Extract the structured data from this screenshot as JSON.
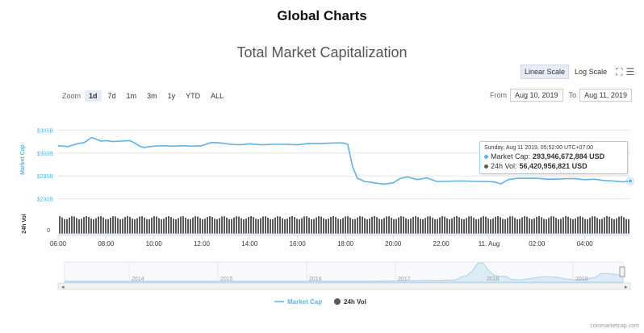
{
  "header": {
    "page_title": "Global Charts",
    "chart_title": "Total Market Capitalization"
  },
  "controls": {
    "scale_linear": "Linear Scale",
    "scale_log": "Log Scale",
    "zoom_label": "Zoom",
    "zoom_options": [
      "1d",
      "7d",
      "1m",
      "3m",
      "1y",
      "YTD",
      "ALL"
    ],
    "zoom_selected": "1d",
    "from_label": "From",
    "from_value": "Aug 10, 2019",
    "to_label": "To",
    "to_value": "Aug 11, 2019"
  },
  "tooltip": {
    "timestamp": "Sunday, Aug 11 2019, 05:52:00 UTC+07:00",
    "market_cap_label": "Market Cap:",
    "market_cap_value": "293,946,672,884 USD",
    "volume_label": "24h Vol:",
    "volume_value": "56,420,956,821 USD"
  },
  "legend": {
    "market_cap": "Market Cap",
    "volume": "24h Vol"
  },
  "watermark": "coinmarketcap.com",
  "colors": {
    "line": "#5fb3e4",
    "volume": "#5a5a5a",
    "navigator": "#a9d4ef",
    "grid": "#e6e6e6"
  },
  "chart_data": {
    "type": "line",
    "ylabel": "Market Cap",
    "ylabel_volume": "24h Vol",
    "y_ticks": [
      "$305B",
      "$300B",
      "$295B",
      "$290B"
    ],
    "y_tick_values": [
      305,
      300,
      295,
      290
    ],
    "ylim": [
      288,
      307
    ],
    "y_units": "billion USD",
    "volume_tick": "0",
    "x_ticks": [
      "06:00",
      "08:00",
      "10:00",
      "12:00",
      "14:00",
      "16:00",
      "18:00",
      "20:00",
      "22:00",
      "11. Aug",
      "02:00",
      "04:00"
    ],
    "x_tick_hours": [
      6,
      8,
      10,
      12,
      14,
      16,
      18,
      20,
      22,
      24,
      26,
      28
    ],
    "xlim_hours": [
      6,
      29.9
    ],
    "series": [
      {
        "name": "Market Cap",
        "x": [
          6.0,
          6.4,
          6.8,
          7.1,
          7.4,
          7.6,
          7.8,
          8.0,
          8.3,
          8.6,
          9.0,
          9.2,
          9.4,
          9.6,
          9.8,
          10.0,
          10.4,
          10.8,
          11.2,
          11.6,
          12.0,
          12.4,
          12.8,
          13.2,
          13.6,
          14.0,
          14.5,
          15.0,
          15.5,
          16.0,
          16.5,
          17.0,
          17.5,
          17.9,
          18.1,
          18.3,
          18.5,
          18.8,
          19.2,
          19.6,
          20.0,
          20.3,
          20.6,
          21.0,
          21.4,
          21.8,
          22.2,
          22.6,
          23.0,
          23.4,
          23.8,
          24.2,
          24.5,
          24.8,
          25.2,
          25.6,
          26.0,
          26.4,
          26.8,
          27.2,
          27.6,
          28.0,
          28.4,
          28.8,
          29.2,
          29.6,
          29.9
        ],
        "values": [
          301.6,
          301.4,
          302.0,
          302.3,
          303.4,
          303.0,
          302.6,
          302.7,
          302.5,
          302.6,
          302.7,
          302.2,
          301.5,
          301.2,
          301.4,
          301.5,
          301.6,
          301.5,
          301.6,
          301.5,
          301.6,
          302.3,
          302.2,
          301.9,
          301.8,
          302.0,
          301.8,
          301.9,
          301.9,
          301.8,
          302.1,
          302.1,
          302.2,
          302.2,
          301.9,
          297.0,
          294.5,
          293.8,
          293.5,
          293.2,
          293.5,
          294.5,
          294.8,
          294.2,
          294.6,
          293.8,
          293.8,
          293.9,
          293.9,
          293.8,
          293.8,
          293.7,
          293.3,
          294.2,
          294.5,
          294.5,
          294.5,
          294.3,
          294.3,
          294.4,
          294.4,
          294.2,
          294.3,
          294.0,
          293.9,
          293.7,
          293.9
        ]
      },
      {
        "name": "24h Vol",
        "type": "column",
        "values_note": "dense roughly constant 5-minute columns",
        "level": 56.4,
        "units": "billion USD"
      }
    ],
    "navigator_ticks": [
      "2014",
      "2015",
      "2016",
      "2017",
      "2018",
      "2019"
    ]
  }
}
